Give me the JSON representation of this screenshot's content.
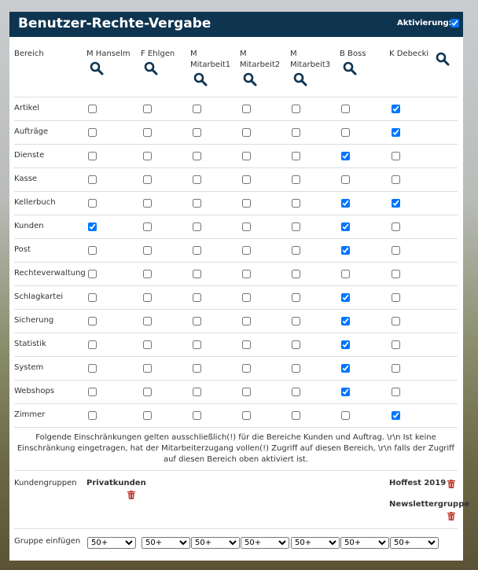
{
  "header": {
    "title": "Benutzer-Rechte-Vergabe",
    "activation_label": "Aktivierung:",
    "activation_checked": true
  },
  "table": {
    "corner": "Bereich",
    "columns": [
      "M Hanselm",
      "F Ehlgen",
      "M Mitarbeit1",
      "M Mitarbeit2",
      "M Mitarbeit3",
      "B Boss",
      "K Debecki"
    ],
    "rows": [
      {
        "label": "Artikel",
        "checked": [
          false,
          false,
          false,
          false,
          false,
          false,
          true
        ]
      },
      {
        "label": "Aufträge",
        "checked": [
          false,
          false,
          false,
          false,
          false,
          false,
          true
        ]
      },
      {
        "label": "Dienste",
        "checked": [
          false,
          false,
          false,
          false,
          false,
          true,
          false
        ]
      },
      {
        "label": "Kasse",
        "checked": [
          false,
          false,
          false,
          false,
          false,
          false,
          false
        ]
      },
      {
        "label": "Kellerbuch",
        "checked": [
          false,
          false,
          false,
          false,
          false,
          true,
          true
        ]
      },
      {
        "label": "Kunden",
        "checked": [
          true,
          false,
          false,
          false,
          false,
          true,
          false
        ]
      },
      {
        "label": "Post",
        "checked": [
          false,
          false,
          false,
          false,
          false,
          true,
          false
        ]
      },
      {
        "label": "Rechteverwaltung",
        "checked": [
          false,
          false,
          false,
          false,
          false,
          false,
          false
        ]
      },
      {
        "label": "Schlagkartei",
        "checked": [
          false,
          false,
          false,
          false,
          false,
          true,
          false
        ]
      },
      {
        "label": "Sicherung",
        "checked": [
          false,
          false,
          false,
          false,
          false,
          true,
          false
        ]
      },
      {
        "label": "Statistik",
        "checked": [
          false,
          false,
          false,
          false,
          false,
          true,
          false
        ]
      },
      {
        "label": "System",
        "checked": [
          false,
          false,
          false,
          false,
          false,
          true,
          false
        ]
      },
      {
        "label": "Webshops",
        "checked": [
          false,
          false,
          false,
          false,
          false,
          true,
          false
        ]
      },
      {
        "label": "Zimmer",
        "checked": [
          false,
          false,
          false,
          false,
          false,
          false,
          true
        ]
      }
    ]
  },
  "notice": "Folgende Einschränkungen gelten ausschließlich(!) für die Bereiche Kunden und Auftrag. \\r\\n Ist keine Einschränkung eingetragen, hat der Mitarbeiterzugang vollen(!) Zugriff auf diesen Bereich, \\r\\n falls der Zugriff auf diesen Bereich oben aktiviert ist.",
  "groups": {
    "label": "Kundengruppen",
    "by_column": [
      [
        "Privatkunden"
      ],
      [],
      [],
      [],
      [],
      [],
      [
        "Hoffest 2019",
        "Newslettergruppe"
      ]
    ]
  },
  "insert": {
    "label": "Gruppe einfügen",
    "selects": [
      "50+",
      "50+",
      "50+",
      "50+",
      "50+",
      "50+",
      "50+"
    ]
  }
}
